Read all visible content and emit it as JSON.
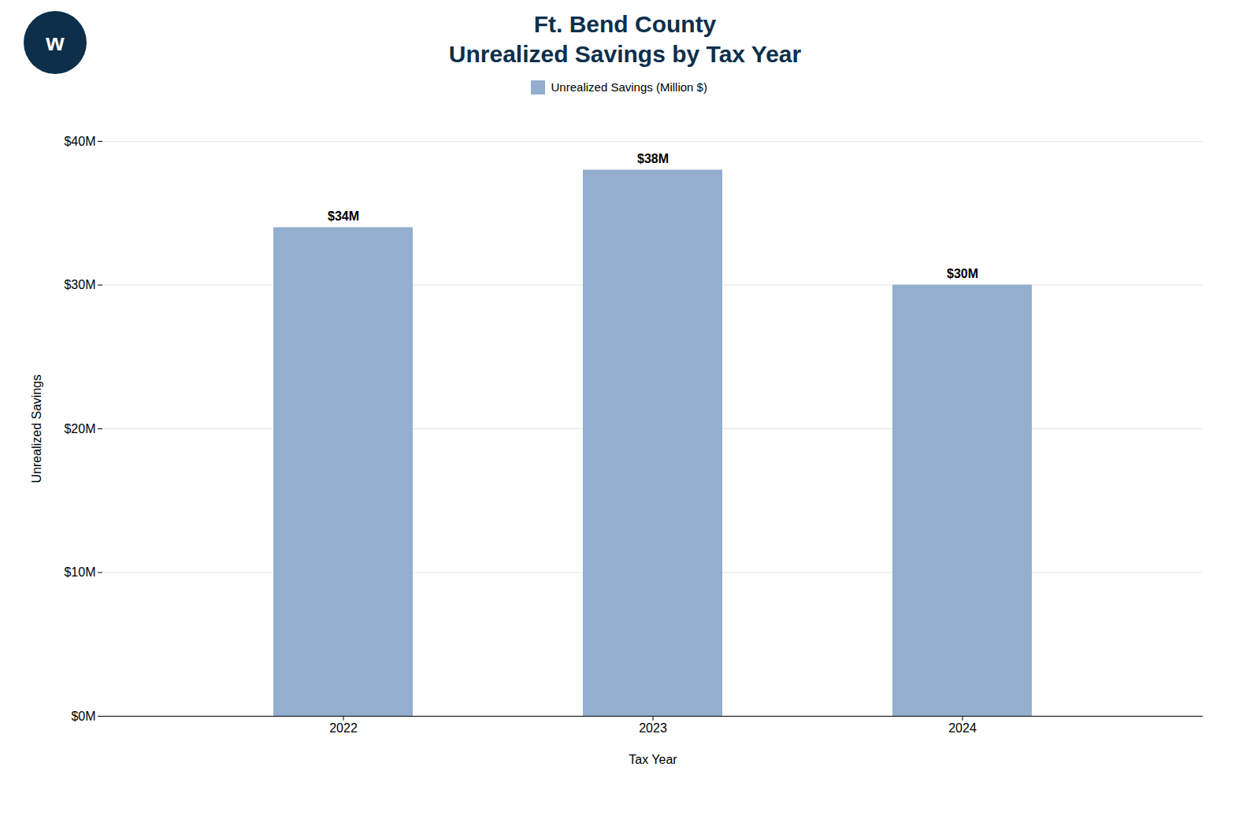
{
  "chart_data": {
    "type": "bar",
    "title": "Ft. Bend County",
    "subtitle": "Unrealized Savings by Tax Year",
    "x_label": "Tax Year",
    "y_label": "Unrealized Savings",
    "annotations": [
      "w"
    ],
    "categories": [
      "2022",
      "2023",
      "2024"
    ],
    "series": [
      {
        "name": "Unrealized Savings (Million $)",
        "color": "#93aece",
        "values": [
          34,
          38,
          30
        ],
        "value_labels": [
          "$34M",
          "$38M",
          "$30M"
        ]
      }
    ],
    "ylim": [
      0,
      40
    ],
    "yticks": [
      {
        "value": 0,
        "label": "$0M"
      },
      {
        "value": 10,
        "label": "$10M"
      },
      {
        "value": 20,
        "label": "$20M"
      },
      {
        "value": 30,
        "label": "$30M"
      },
      {
        "value": 40,
        "label": "$40M"
      }
    ],
    "grid": true,
    "legend": "top",
    "data_labels": true
  }
}
